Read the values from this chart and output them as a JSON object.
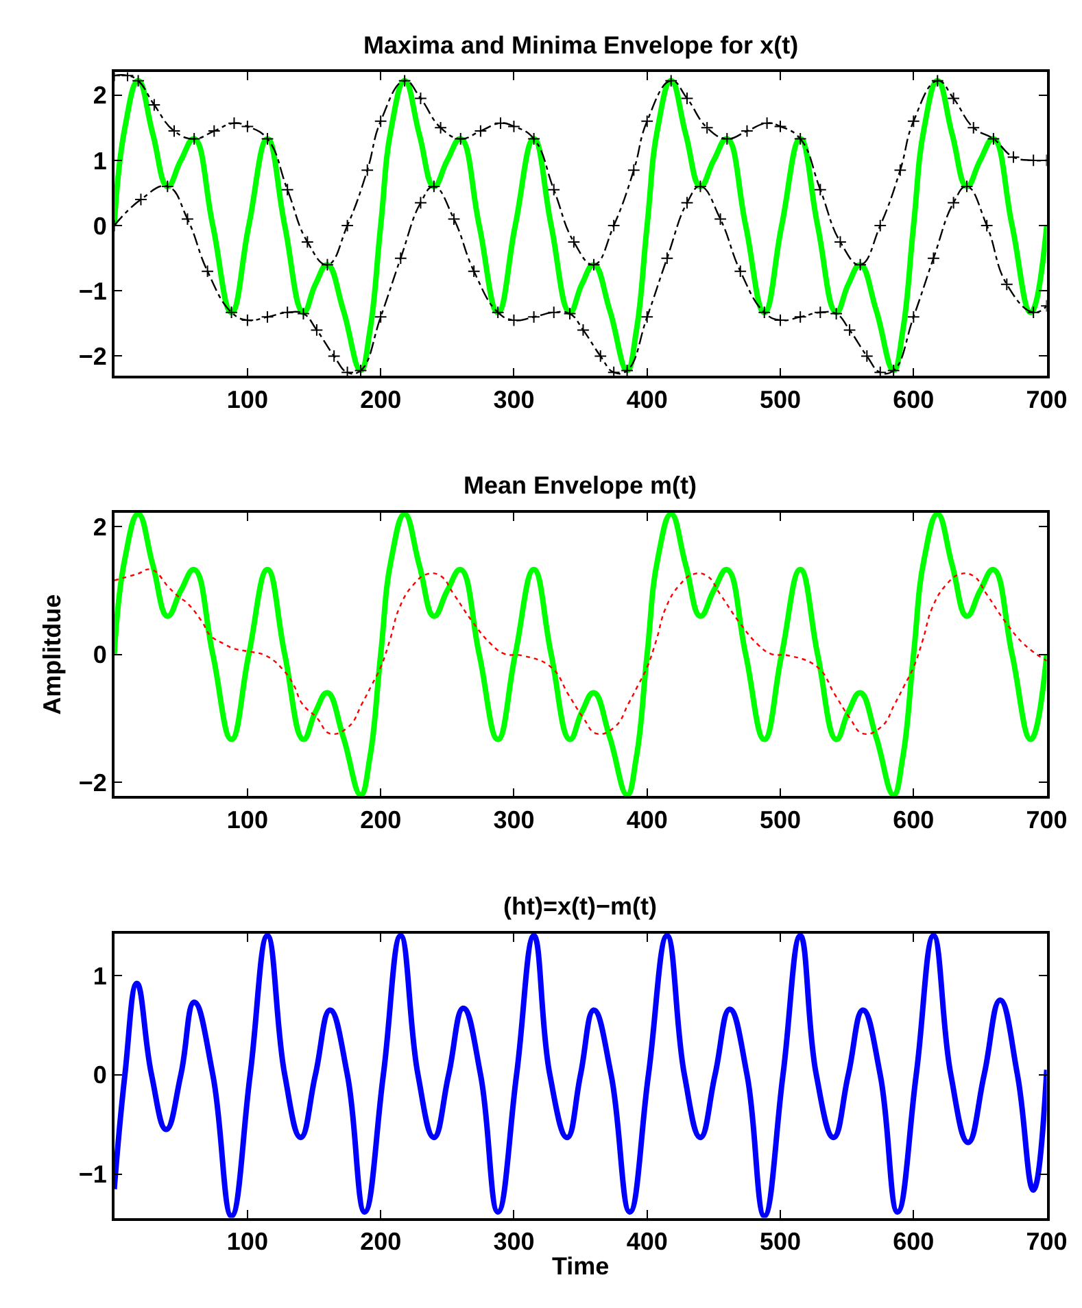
{
  "chart_data": [
    {
      "type": "line",
      "title": "Maxima and Minima Envelope for x(t)",
      "xlim": [
        0,
        700
      ],
      "ylim": [
        -2.3,
        2.35
      ],
      "xticks": [
        100,
        200,
        300,
        400,
        500,
        600,
        700
      ],
      "yticks": [
        -2,
        -1,
        0,
        1,
        2
      ],
      "grid": false,
      "legend": false,
      "series": [
        {
          "color": "#00ff00",
          "line_style": "solid",
          "x": [
            0,
            8,
            18,
            29,
            40,
            50,
            60,
            74,
            88,
            101,
            115,
            128,
            142,
            151,
            160,
            172,
            185,
            192,
            200,
            208,
            218,
            229,
            240,
            250,
            260,
            274,
            288,
            301,
            315,
            328,
            342,
            351,
            360,
            372,
            385,
            392,
            400,
            408,
            418,
            429,
            440,
            450,
            460,
            474,
            488,
            501,
            515,
            528,
            542,
            551,
            560,
            572,
            585,
            592,
            600,
            608,
            618,
            629,
            640,
            650,
            660,
            674,
            688,
            700
          ],
          "values": [
            0,
            1.5,
            2.22,
            1.4,
            0.6,
            1.0,
            1.33,
            0,
            -1.33,
            0,
            1.33,
            0,
            -1.33,
            -0.9,
            -0.6,
            -1.3,
            -2.22,
            -1.6,
            0,
            1.5,
            2.22,
            1.4,
            0.6,
            1.0,
            1.33,
            0,
            -1.33,
            0,
            1.33,
            0,
            -1.33,
            -0.9,
            -0.6,
            -1.3,
            -2.22,
            -1.6,
            0,
            1.5,
            2.22,
            1.4,
            0.6,
            1.0,
            1.33,
            0,
            -1.33,
            0,
            1.33,
            0,
            -1.33,
            -0.9,
            -0.6,
            -1.3,
            -2.22,
            -1.6,
            0,
            1.5,
            2.22,
            1.4,
            0.6,
            1.0,
            1.33,
            0,
            -1.33,
            0
          ]
        },
        {
          "color": "#000000",
          "line_style": "dashdot",
          "marker": "cross",
          "x": [
            0,
            10,
            18,
            30,
            45,
            60,
            75,
            90,
            100,
            115,
            130,
            145,
            160,
            175,
            190,
            200,
            218,
            230,
            245,
            260,
            275,
            290,
            300,
            315,
            330,
            345,
            360,
            375,
            390,
            400,
            418,
            430,
            445,
            460,
            475,
            490,
            500,
            515,
            530,
            545,
            560,
            575,
            590,
            600,
            618,
            630,
            645,
            660,
            675,
            690,
            700
          ],
          "values": [
            2.3,
            2.3,
            2.22,
            1.85,
            1.45,
            1.33,
            1.45,
            1.57,
            1.52,
            1.33,
            0.55,
            -0.25,
            -0.6,
            0.0,
            0.85,
            1.6,
            2.22,
            1.95,
            1.5,
            1.33,
            1.45,
            1.57,
            1.52,
            1.33,
            0.55,
            -0.25,
            -0.6,
            0.0,
            0.85,
            1.6,
            2.22,
            1.95,
            1.5,
            1.33,
            1.45,
            1.57,
            1.52,
            1.33,
            0.55,
            -0.25,
            -0.6,
            0.0,
            0.85,
            1.6,
            2.22,
            1.95,
            1.5,
            1.33,
            1.05,
            1.0,
            1.0
          ]
        },
        {
          "color": "#000000",
          "line_style": "dashdot",
          "marker": "cross",
          "x": [
            0,
            20,
            40,
            55,
            70,
            88,
            100,
            115,
            130,
            142,
            152,
            165,
            175,
            185,
            200,
            215,
            230,
            240,
            255,
            270,
            288,
            300,
            315,
            330,
            342,
            352,
            365,
            375,
            385,
            400,
            415,
            430,
            440,
            455,
            470,
            488,
            500,
            515,
            530,
            542,
            552,
            565,
            575,
            585,
            600,
            615,
            630,
            640,
            655,
            670,
            690,
            700
          ],
          "values": [
            0,
            0.4,
            0.6,
            0.1,
            -0.7,
            -1.33,
            -1.45,
            -1.4,
            -1.33,
            -1.35,
            -1.6,
            -2.0,
            -2.25,
            -2.22,
            -1.4,
            -0.5,
            0.35,
            0.6,
            0.1,
            -0.7,
            -1.33,
            -1.45,
            -1.4,
            -1.33,
            -1.35,
            -1.6,
            -2.0,
            -2.25,
            -2.22,
            -1.4,
            -0.5,
            0.35,
            0.6,
            0.1,
            -0.7,
            -1.33,
            -1.45,
            -1.4,
            -1.33,
            -1.35,
            -1.6,
            -2.0,
            -2.25,
            -2.22,
            -1.4,
            -0.5,
            0.35,
            0.6,
            0.0,
            -0.9,
            -1.33,
            -1.23
          ]
        }
      ]
    },
    {
      "type": "line",
      "title": "Mean Envelope m(t)",
      "ylabel": "Amplitdue",
      "xlim": [
        0,
        700
      ],
      "ylim": [
        -2.22,
        2.22
      ],
      "xticks": [
        100,
        200,
        300,
        400,
        500,
        600,
        700
      ],
      "yticks": [
        -2,
        0,
        2
      ],
      "grid": false,
      "legend": false,
      "series": [
        {
          "color": "#00ff00",
          "line_style": "solid",
          "x": [
            0,
            8,
            18,
            29,
            40,
            50,
            60,
            74,
            88,
            101,
            115,
            128,
            142,
            151,
            160,
            172,
            185,
            192,
            200,
            208,
            218,
            229,
            240,
            250,
            260,
            274,
            288,
            301,
            315,
            328,
            342,
            351,
            360,
            372,
            385,
            392,
            400,
            408,
            418,
            429,
            440,
            450,
            460,
            474,
            488,
            501,
            515,
            528,
            542,
            551,
            560,
            572,
            585,
            592,
            600,
            608,
            618,
            629,
            640,
            650,
            660,
            674,
            688,
            700
          ],
          "values": [
            0,
            1.5,
            2.2,
            1.4,
            0.6,
            1.0,
            1.33,
            0,
            -1.33,
            0,
            1.33,
            0,
            -1.33,
            -0.9,
            -0.6,
            -1.3,
            -2.2,
            -1.6,
            0,
            1.5,
            2.2,
            1.4,
            0.6,
            1.0,
            1.33,
            0,
            -1.33,
            0,
            1.33,
            0,
            -1.33,
            -0.9,
            -0.6,
            -1.3,
            -2.2,
            -1.6,
            0,
            1.5,
            2.2,
            1.4,
            0.6,
            1.0,
            1.33,
            0,
            -1.33,
            0,
            1.33,
            0,
            -1.33,
            -0.9,
            -0.6,
            -1.3,
            -2.2,
            -1.6,
            0,
            1.5,
            2.2,
            1.4,
            0.6,
            1.0,
            1.33,
            0,
            -1.33,
            0
          ]
        },
        {
          "color": "#ff0000",
          "line_style": "dotted",
          "x": [
            0,
            17,
            28,
            41,
            48,
            55,
            66,
            72,
            83,
            90,
            100,
            114,
            128,
            135,
            141,
            152,
            162,
            176,
            186,
            193,
            200,
            207,
            214,
            224,
            235,
            245,
            255,
            269,
            283,
            293,
            307,
            328,
            341,
            352,
            362,
            376,
            386,
            393,
            400,
            407,
            414,
            424,
            435,
            445,
            455,
            469,
            483,
            493,
            507,
            528,
            541,
            552,
            562,
            576,
            586,
            593,
            600,
            607,
            614,
            624,
            635,
            645,
            655,
            669,
            683,
            700
          ],
          "values": [
            1.16,
            1.26,
            1.33,
            1.05,
            0.91,
            0.8,
            0.51,
            0.3,
            0.16,
            0.09,
            0.05,
            -0.02,
            -0.27,
            -0.49,
            -0.77,
            -0.99,
            -1.24,
            -1.13,
            -0.77,
            -0.49,
            -0.2,
            0.23,
            0.73,
            1.08,
            1.26,
            1.23,
            0.94,
            0.51,
            0.16,
            0.01,
            -0.02,
            -0.2,
            -0.63,
            -0.99,
            -1.24,
            -1.13,
            -0.77,
            -0.49,
            -0.2,
            0.23,
            0.73,
            1.08,
            1.26,
            1.23,
            0.94,
            0.51,
            0.16,
            0.01,
            -0.02,
            -0.2,
            -0.63,
            -0.99,
            -1.24,
            -1.13,
            -0.77,
            -0.49,
            -0.2,
            0.23,
            0.73,
            1.08,
            1.26,
            1.23,
            0.94,
            0.51,
            0.16,
            -0.1
          ]
        }
      ]
    },
    {
      "type": "line",
      "title": "(ht)=x(t)−m(t)",
      "xlabel": "Time",
      "xlim": [
        0,
        700
      ],
      "ylim": [
        -1.44,
        1.42
      ],
      "xticks": [
        100,
        200,
        300,
        400,
        500,
        600,
        700
      ],
      "yticks": [
        -1,
        0,
        1
      ],
      "grid": false,
      "legend": false,
      "series": [
        {
          "color": "#0000ff",
          "line_style": "solid",
          "x": [
            0,
            8,
            17,
            28,
            39,
            50,
            60,
            74,
            88,
            102,
            115,
            128,
            140,
            151,
            162,
            175,
            188,
            202,
            215,
            228,
            240,
            251,
            262,
            275,
            288,
            302,
            315,
            327,
            340,
            350,
            360,
            373,
            387,
            401,
            415,
            428,
            440,
            451,
            462,
            475,
            488,
            502,
            515,
            527,
            540,
            551,
            562,
            575,
            588,
            602,
            615,
            628,
            641,
            653,
            665,
            678,
            690,
            700
          ],
          "values": [
            -1.15,
            0,
            0.92,
            0,
            -0.55,
            0,
            0.73,
            0,
            -1.42,
            0,
            1.4,
            0,
            -0.63,
            0,
            0.65,
            0,
            -1.38,
            0,
            1.4,
            0,
            -0.63,
            0,
            0.67,
            0,
            -1.38,
            0,
            1.4,
            0,
            -0.63,
            0,
            0.65,
            0,
            -1.38,
            0,
            1.4,
            0,
            -0.63,
            0,
            0.66,
            0,
            -1.42,
            0,
            1.4,
            0,
            -0.63,
            0,
            0.65,
            0,
            -1.38,
            0,
            1.4,
            0,
            -0.68,
            0,
            0.75,
            0,
            -1.16,
            0.05
          ]
        }
      ]
    }
  ]
}
